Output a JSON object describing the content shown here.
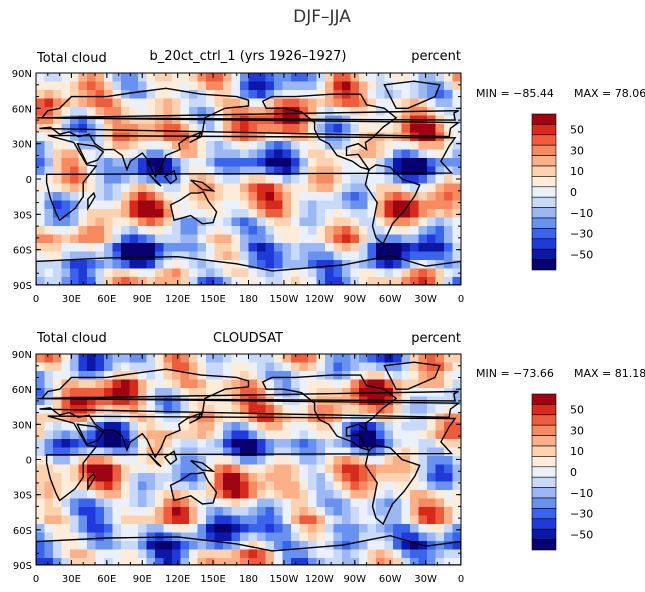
{
  "figure_title": "DJF–JJA",
  "colors": {
    "scale": [
      "#08006e",
      "#0c17a8",
      "#1f3ad8",
      "#3a64ec",
      "#6891f0",
      "#9bb8f5",
      "#c8d9f9",
      "#eaf1fc",
      "#fcecd9",
      "#fcd2b0",
      "#fbb087",
      "#f78a60",
      "#ee5c3e",
      "#d62a1c",
      "#9e0412"
    ],
    "coast": "#000000"
  },
  "chart_data": [
    {
      "type": "heatmap",
      "label_left": "Total cloud",
      "label_center": "b_20ct_ctrl_1 (yrs 1926–1927)",
      "label_right": "percent",
      "min_text": "MIN = −85.44",
      "max_text": "MAX =  78.06",
      "min": -85.44,
      "max": 78.06,
      "y_ticks": [
        "90N",
        "60N",
        "30N",
        "0",
        "30S",
        "60S",
        "90S"
      ],
      "x_ticks": [
        "0",
        "30E",
        "60E",
        "90E",
        "120E",
        "150E",
        "180",
        "150W",
        "120W",
        "90W",
        "60W",
        "30W",
        "0"
      ],
      "colorbar_labels": [
        "50",
        "30",
        "10",
        "0",
        "−10",
        "−30",
        "−50"
      ]
    },
    {
      "type": "heatmap",
      "label_left": "Total cloud",
      "label_center": "CLOUDSAT",
      "label_right": "percent",
      "min_text": "MIN = −73.66",
      "max_text": "MAX =  81.18",
      "min": -73.66,
      "max": 81.18,
      "y_ticks": [
        "90N",
        "60N",
        "30N",
        "0",
        "30S",
        "60S",
        "90S"
      ],
      "x_ticks": [
        "0",
        "30E",
        "60E",
        "90E",
        "120E",
        "150E",
        "180",
        "150W",
        "120W",
        "90W",
        "60W",
        "30W",
        "0"
      ],
      "colorbar_labels": [
        "50",
        "30",
        "10",
        "0",
        "−10",
        "−30",
        "−50"
      ]
    }
  ]
}
